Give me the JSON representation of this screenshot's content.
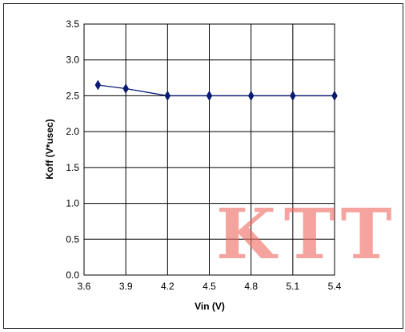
{
  "chart_data": {
    "type": "line",
    "title": "",
    "xlabel": "Vin (V)",
    "ylabel": "Koff (V*usec)",
    "xlim": [
      3.6,
      5.4
    ],
    "ylim": [
      0.0,
      3.5
    ],
    "x_ticks": [
      "3.6",
      "3.9",
      "4.2",
      "4.5",
      "4.8",
      "5.1",
      "5.4"
    ],
    "y_ticks": [
      "0.0",
      "0.5",
      "1.0",
      "1.5",
      "2.0",
      "2.5",
      "3.0",
      "3.5"
    ],
    "grid": true,
    "legend": "none",
    "series": [
      {
        "color": "#0b1a73",
        "marker": "diamond",
        "x": [
          3.7,
          3.9,
          4.2,
          4.5,
          4.8,
          5.1,
          5.4
        ],
        "y": [
          2.65,
          2.6,
          2.5,
          2.5,
          2.5,
          2.5,
          2.5
        ]
      }
    ],
    "watermark": "KTT"
  }
}
